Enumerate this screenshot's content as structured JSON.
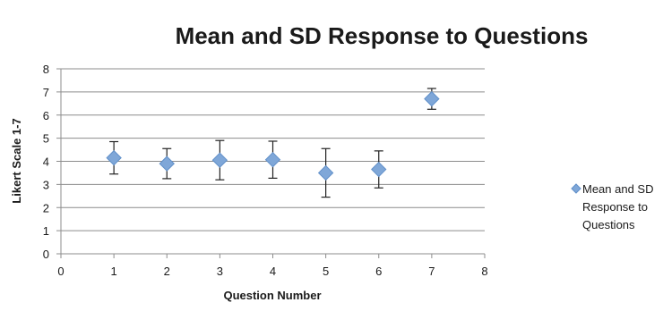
{
  "chart_data": {
    "type": "scatter",
    "title": "Mean and SD Response to Questions",
    "xlabel": "Question Number",
    "ylabel": "Likert Scale 1-7",
    "xlim": [
      0,
      8
    ],
    "ylim": [
      0,
      8
    ],
    "xticks": [
      "0",
      "1",
      "2",
      "3",
      "4",
      "5",
      "6",
      "7",
      "8"
    ],
    "yticks": [
      "0",
      "1",
      "2",
      "3",
      "4",
      "5",
      "6",
      "7",
      "8"
    ],
    "grid": "horizontal",
    "legend": "right",
    "marker_color": "#7fa7d8",
    "series": [
      {
        "name": "Mean and SD Response to Questions",
        "legend_lines": [
          "Mean and SD",
          "Response to",
          "Questions"
        ],
        "points": [
          {
            "x": 1,
            "y": 4.15,
            "sd": 0.7
          },
          {
            "x": 2,
            "y": 3.9,
            "sd": 0.65
          },
          {
            "x": 3,
            "y": 4.05,
            "sd": 0.85
          },
          {
            "x": 4,
            "y": 4.07,
            "sd": 0.8
          },
          {
            "x": 5,
            "y": 3.5,
            "sd": 1.05
          },
          {
            "x": 6,
            "y": 3.65,
            "sd": 0.8
          },
          {
            "x": 7,
            "y": 6.7,
            "sd": 0.45
          }
        ]
      }
    ]
  }
}
